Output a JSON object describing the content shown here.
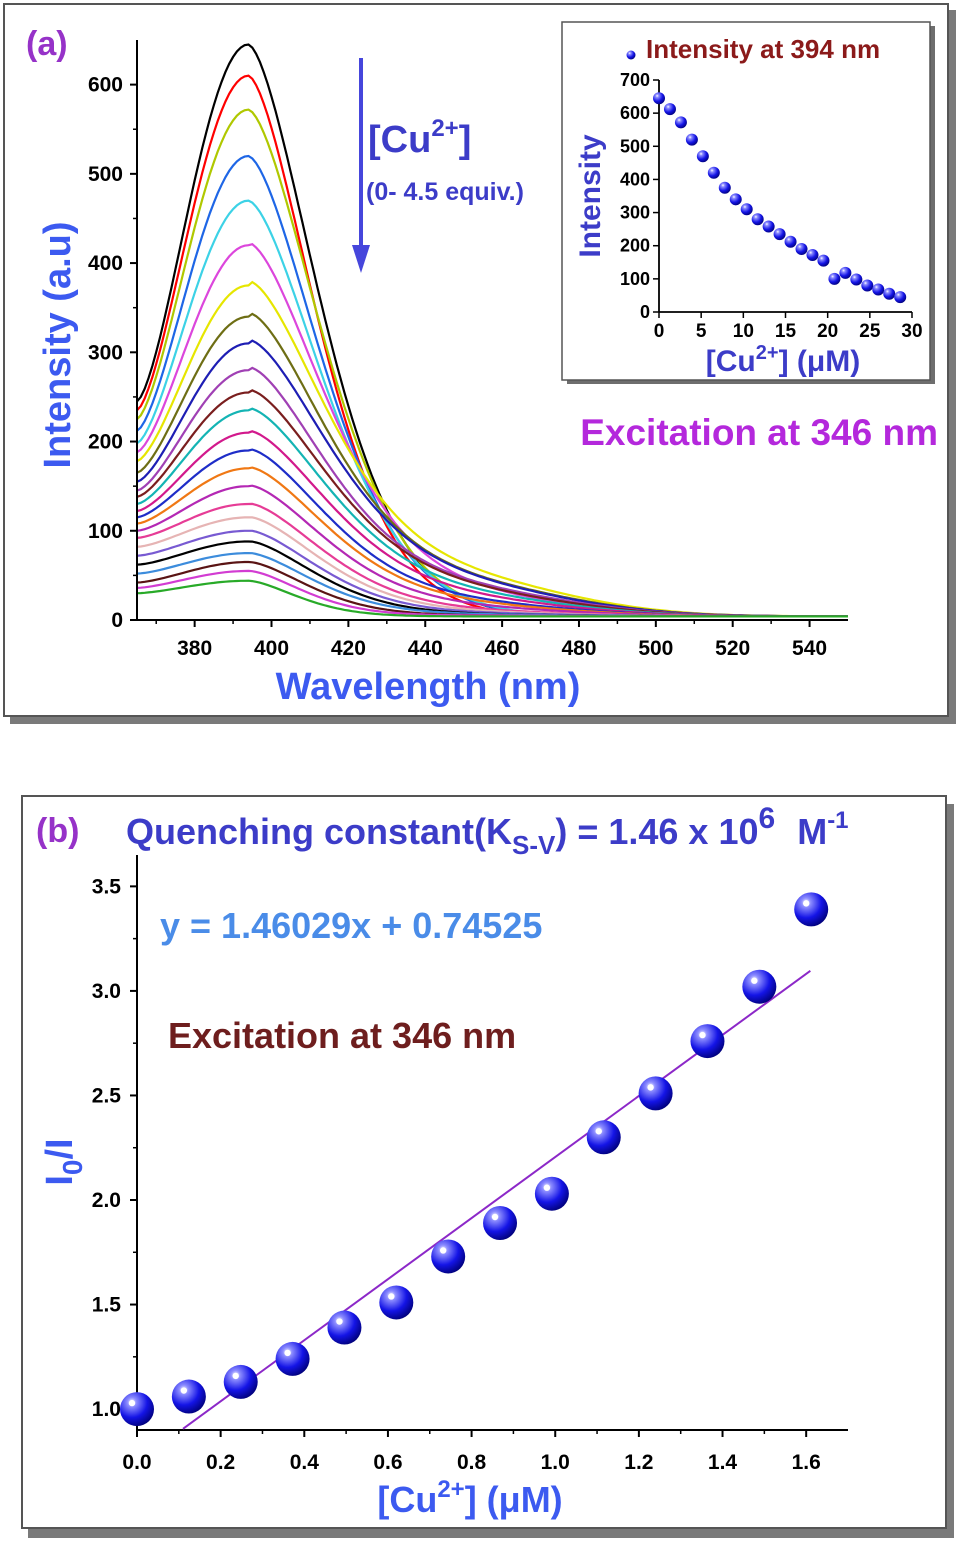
{
  "chart_data": [
    {
      "type": "line",
      "panel_label": "(a)",
      "xlabel": "Wavelength (nm)",
      "ylabel": "Intensity (a.u)",
      "xlim": [
        365,
        550
      ],
      "ylim": [
        0,
        650
      ],
      "xticks": [
        "380",
        "400",
        "420",
        "440",
        "460",
        "480",
        "500",
        "520",
        "540"
      ],
      "yticks": [
        "0",
        "100",
        "200",
        "300",
        "400",
        "500",
        "600"
      ],
      "arrow_label_main": "[Cu",
      "arrow_label_sup": "2+",
      "arrow_label_close": "]",
      "arrow_sub": "(0- 4.5 equiv.)",
      "annotation": "Excitation at 346 nm",
      "colors": [
        "#000000",
        "#ff0000",
        "#b0c800",
        "#1e66e6",
        "#3cd2e6",
        "#dc46dc",
        "#e6e600",
        "#6e6e14",
        "#1e1eb4",
        "#a040b4",
        "#7a1e1e",
        "#14b4b4",
        "#d2198c",
        "#1e2dc8",
        "#f07814",
        "#b428b4",
        "#e63c96",
        "#e6b4b4",
        "#785ad2",
        "#000000",
        "#3c8cdc",
        "#5a1414",
        "#d23cd2",
        "#28aa28"
      ],
      "series": [
        {
          "peak": 645,
          "base": 245,
          "tail": 4,
          "wx": 26,
          "hump": 0
        },
        {
          "peak": 610,
          "base": 235,
          "tail": 4,
          "wx": 25,
          "hump": 0
        },
        {
          "peak": 572,
          "base": 225,
          "tail": 4,
          "wx": 27,
          "hump": 0
        },
        {
          "peak": 520,
          "base": 212,
          "tail": 4,
          "wx": 27,
          "hump": 0
        },
        {
          "peak": 470,
          "base": 198,
          "tail": 4,
          "wx": 28,
          "hump": 0
        },
        {
          "peak": 420,
          "base": 188,
          "tail": 4,
          "wx": 29,
          "hump": 20
        },
        {
          "peak": 375,
          "base": 178,
          "tail": 4,
          "wx": 30,
          "hump": 35
        },
        {
          "peak": 340,
          "base": 165,
          "tail": 4,
          "wx": 30,
          "hump": 30
        },
        {
          "peak": 310,
          "base": 155,
          "tail": 4,
          "wx": 31,
          "hump": 28
        },
        {
          "peak": 280,
          "base": 145,
          "tail": 4,
          "wx": 30,
          "hump": 25
        },
        {
          "peak": 255,
          "base": 138,
          "tail": 4,
          "wx": 31,
          "hump": 22
        },
        {
          "peak": 235,
          "base": 130,
          "tail": 4,
          "wx": 31,
          "hump": 18
        },
        {
          "peak": 210,
          "base": 122,
          "tail": 4,
          "wx": 31,
          "hump": 15
        },
        {
          "peak": 190,
          "base": 115,
          "tail": 4,
          "wx": 30,
          "hump": 12
        },
        {
          "peak": 170,
          "base": 108,
          "tail": 4,
          "wx": 30,
          "hump": 10
        },
        {
          "peak": 150,
          "base": 100,
          "tail": 4,
          "wx": 29,
          "hump": 8
        },
        {
          "peak": 130,
          "base": 92,
          "tail": 4,
          "wx": 28,
          "hump": 5
        },
        {
          "peak": 115,
          "base": 82,
          "tail": 4,
          "wx": 27,
          "hump": 4
        },
        {
          "peak": 100,
          "base": 72,
          "tail": 4,
          "wx": 26,
          "hump": 3
        },
        {
          "peak": 88,
          "base": 62,
          "tail": 4,
          "wx": 25,
          "hump": 2
        },
        {
          "peak": 75,
          "base": 52,
          "tail": 4,
          "wx": 24,
          "hump": 2
        },
        {
          "peak": 65,
          "base": 42,
          "tail": 4,
          "wx": 22,
          "hump": 1
        },
        {
          "peak": 55,
          "base": 36,
          "tail": 4,
          "wx": 20,
          "hump": 1
        },
        {
          "peak": 44,
          "base": 30,
          "tail": 4,
          "wx": 18,
          "hump": 0
        }
      ]
    },
    {
      "type": "scatter",
      "panel_label": "inset",
      "legend": "Intensity at 394 nm",
      "xlabel_main": "[Cu",
      "xlabel_sup": "2+",
      "xlabel_unit": "] (μM)",
      "ylabel": "Intensity",
      "xlim": [
        0,
        30
      ],
      "ylim": [
        0,
        700
      ],
      "xticks": [
        "0",
        "5",
        "10",
        "15",
        "20",
        "25",
        "30"
      ],
      "yticks": [
        "0",
        "100",
        "200",
        "300",
        "400",
        "500",
        "600",
        "700"
      ],
      "x": [
        0,
        1.3,
        2.6,
        3.9,
        5.2,
        6.5,
        7.8,
        9.1,
        10.4,
        11.7,
        13,
        14.3,
        15.6,
        16.9,
        18.2,
        19.5,
        20.8,
        22.1,
        23.4,
        24.7,
        26,
        27.3,
        28.6
      ],
      "y": [
        645,
        612,
        572,
        520,
        470,
        420,
        375,
        340,
        310,
        280,
        258,
        235,
        212,
        190,
        172,
        155,
        100,
        118,
        98,
        80,
        68,
        55,
        45
      ]
    },
    {
      "type": "scatter",
      "panel_label": "(b)",
      "title_main": "Quenching constant(K",
      "title_sub": "S-V",
      "title_mid": ") = 1.46 x 10",
      "title_exp": "6",
      "title_unit": "M",
      "title_unit_exp": "-1",
      "equation": "y = 1.46029x + 0.74525",
      "annotation": "Excitation at 346 nm",
      "xlabel_main": "[Cu",
      "xlabel_sup": "2+",
      "xlabel_unit": "] (μM)",
      "ylabel_main": "I",
      "ylabel_sub": "0",
      "ylabel_tail": "/I",
      "xlim": [
        0,
        1.7
      ],
      "ylim": [
        0.9,
        3.65
      ],
      "xticks": [
        "0.0",
        "0.2",
        "0.4",
        "0.6",
        "0.8",
        "1.0",
        "1.2",
        "1.4",
        "1.6"
      ],
      "yticks": [
        "1.0",
        "1.5",
        "2.0",
        "2.5",
        "3.0",
        "3.5"
      ],
      "x": [
        0,
        0.124,
        0.248,
        0.372,
        0.496,
        0.62,
        0.744,
        0.868,
        0.992,
        1.116,
        1.24,
        1.364,
        1.488,
        1.612
      ],
      "y": [
        1.0,
        1.06,
        1.13,
        1.24,
        1.39,
        1.51,
        1.73,
        1.89,
        2.03,
        2.3,
        2.51,
        2.76,
        3.02,
        3.39
      ],
      "fit": {
        "slope": 1.46029,
        "intercept": 0.74525,
        "x_from": 0.11,
        "x_to": 1.61
      }
    }
  ]
}
